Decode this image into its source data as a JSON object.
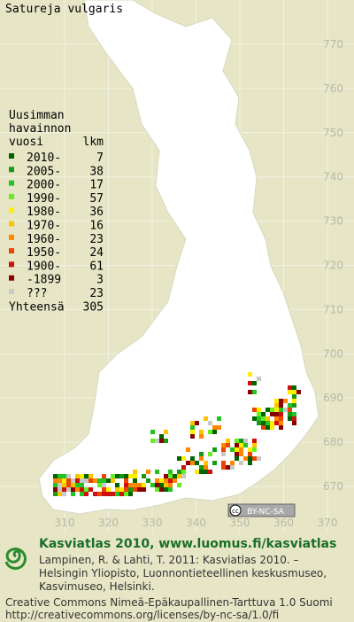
{
  "title": "Satureja vulgaris",
  "legend": {
    "heading": [
      "Uusimman",
      "havainnon",
      "vuosi"
    ],
    "count_heading": "lkm",
    "rows": [
      {
        "label": "2010-",
        "count": 7,
        "color": "#006400"
      },
      {
        "label": "2005-",
        "count": 38,
        "color": "#169a16"
      },
      {
        "label": "2000-",
        "count": 17,
        "color": "#22c322"
      },
      {
        "label": "1990-",
        "count": 57,
        "color": "#66ee22"
      },
      {
        "label": "1980-",
        "count": 36,
        "color": "#ffee00"
      },
      {
        "label": "1970-",
        "count": 16,
        "color": "#ffc400"
      },
      {
        "label": "1960-",
        "count": 23,
        "color": "#ff8800"
      },
      {
        "label": "1950-",
        "count": 24,
        "color": "#ee4400"
      },
      {
        "label": "1900-",
        "count": 61,
        "color": "#cc1010"
      },
      {
        "label": "-1899",
        "count": 3,
        "color": "#880000"
      },
      {
        "label": "???",
        "count": 23,
        "color": "#c8c8c8"
      }
    ],
    "total": {
      "label": "Yhteensä",
      "count": 305
    }
  },
  "northing_labels": [
    770,
    760,
    750,
    740,
    730,
    720,
    710,
    700,
    690,
    680,
    670
  ],
  "easting_labels": [
    310,
    320,
    330,
    340,
    350,
    360,
    370
  ],
  "badge": {
    "cc": "cc",
    "text": "BY-NC-SA"
  },
  "footer": {
    "headline": "Kasviatlas 2010, www.luomus.fi/kasviatlas",
    "citation": [
      "Lampinen, R. & Lahti, T. 2011: Kasviatlas 2010. –",
      "Helsingin Yliopisto, Luonnontieteellinen keskusmuseo,",
      "Kasvimuseo, Helsinki."
    ],
    "license": [
      "Creative Commons Nimeä-Epäkaupallinen-Tarttuva 1.0 Suomi",
      "http://creativecommons.org/licenses/by-nc-sa/1.0/fi"
    ]
  }
}
